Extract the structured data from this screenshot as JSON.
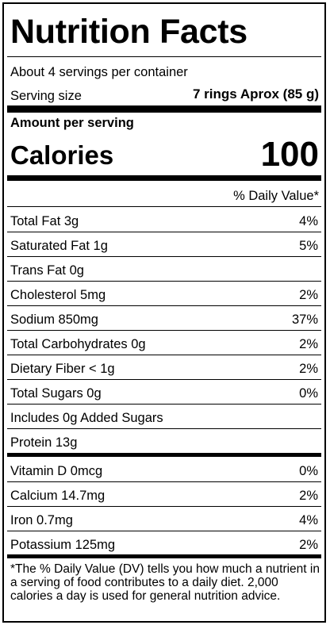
{
  "title": "Nutrition Facts",
  "servings_per_container": "About 4 servings per container",
  "serving_size": {
    "label": "Serving size",
    "value": "7 rings Aprox (85 g)"
  },
  "amount_per_serving": "Amount per serving",
  "calories": {
    "label": "Calories",
    "value": "100"
  },
  "daily_value_header": "% Daily Value*",
  "nutrients": [
    {
      "name": "Total Fat 3g",
      "dv": "4%"
    },
    {
      "name": "Saturated Fat 1g",
      "dv": "5%"
    },
    {
      "name": "Trans Fat 0g",
      "dv": ""
    },
    {
      "name": "Cholesterol 5mg",
      "dv": "2%"
    },
    {
      "name": "Sodium 850mg",
      "dv": "37%"
    },
    {
      "name": "Total Carbohydrates 0g",
      "dv": "2%"
    },
    {
      "name": "Dietary Fiber < 1g",
      "dv": "2%"
    },
    {
      "name": "Total Sugars 0g",
      "dv": "0%"
    },
    {
      "name": "Includes 0g Added Sugars",
      "dv": ""
    },
    {
      "name": "Protein 13g",
      "dv": ""
    }
  ],
  "vitamins": [
    {
      "name": "Vitamin D 0mcg",
      "dv": "0%"
    },
    {
      "name": "Calcium 14.7mg",
      "dv": "2%"
    },
    {
      "name": "Iron 0.7mg",
      "dv": "4%"
    },
    {
      "name": "Potassium 125mg",
      "dv": "2%"
    }
  ],
  "footnote": "*The % Daily Value (DV) tells you how much a nutrient in a serving of food contributes to a daily diet. 2,000 calories  a day is used for general nutrition advice."
}
